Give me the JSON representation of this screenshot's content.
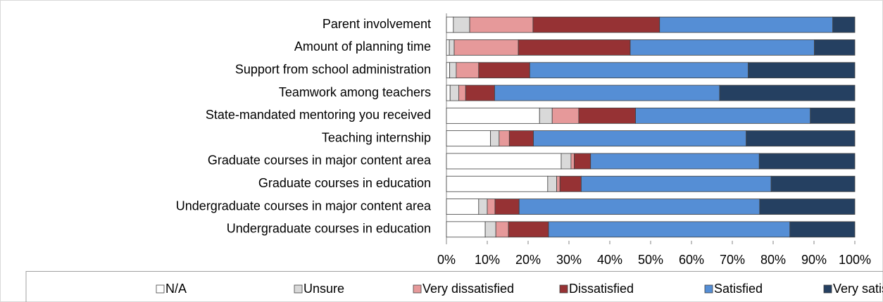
{
  "chart_data": {
    "type": "stacked_bar_horizontal",
    "categories": [
      "Parent involvement",
      "Amount of planning time",
      "Support from school administration",
      "Teamwork among teachers",
      "State-mandated mentoring you received",
      "Teaching internship",
      "Graduate courses in major content area",
      "Graduate courses in education",
      "Undergraduate courses in major content area",
      "Undergraduate courses in education"
    ],
    "series": [
      {
        "name": "N/A",
        "color": "#ffffff",
        "values": [
          1.7,
          0.7,
          0.8,
          0.9,
          22.8,
          10.8,
          28.1,
          24.8,
          7.9,
          9.5
        ]
      },
      {
        "name": "Unsure",
        "color": "#d9d9d9",
        "values": [
          4.0,
          1.2,
          1.6,
          2.1,
          3.1,
          2.1,
          2.4,
          2.2,
          2.1,
          2.6
        ]
      },
      {
        "name": "Very dissatisfied",
        "color": "#e6999a",
        "values": [
          15.5,
          15.7,
          5.5,
          1.7,
          6.5,
          2.5,
          0.8,
          0.8,
          1.9,
          3.1
        ]
      },
      {
        "name": "Dissatisfied",
        "color": "#963234",
        "values": [
          31.0,
          27.4,
          12.5,
          7.1,
          13.9,
          5.9,
          4.0,
          5.2,
          5.9,
          9.8
        ]
      },
      {
        "name": "Satisfied",
        "color": "#558ed5",
        "values": [
          42.4,
          45.1,
          53.5,
          55.1,
          42.8,
          52.1,
          41.3,
          46.5,
          58.9,
          59.1
        ]
      },
      {
        "name": "Very satisfied",
        "color": "#254061",
        "values": [
          5.4,
          9.9,
          26.1,
          33.1,
          10.9,
          26.6,
          23.4,
          20.5,
          23.3,
          15.9
        ]
      }
    ],
    "xlim": [
      0,
      100
    ],
    "xticks": [
      {
        "value": 0,
        "label": "0%"
      },
      {
        "value": 10,
        "label": "10%"
      },
      {
        "value": 20,
        "label": "20%"
      },
      {
        "value": 30,
        "label": "30%"
      },
      {
        "value": 40,
        "label": "40%"
      },
      {
        "value": 50,
        "label": "50%"
      },
      {
        "value": 60,
        "label": "60%"
      },
      {
        "value": 70,
        "label": "70%"
      },
      {
        "value": 80,
        "label": "80%"
      },
      {
        "value": 90,
        "label": "90%"
      },
      {
        "value": 100,
        "label": "100%"
      }
    ],
    "legend": "bottom"
  }
}
